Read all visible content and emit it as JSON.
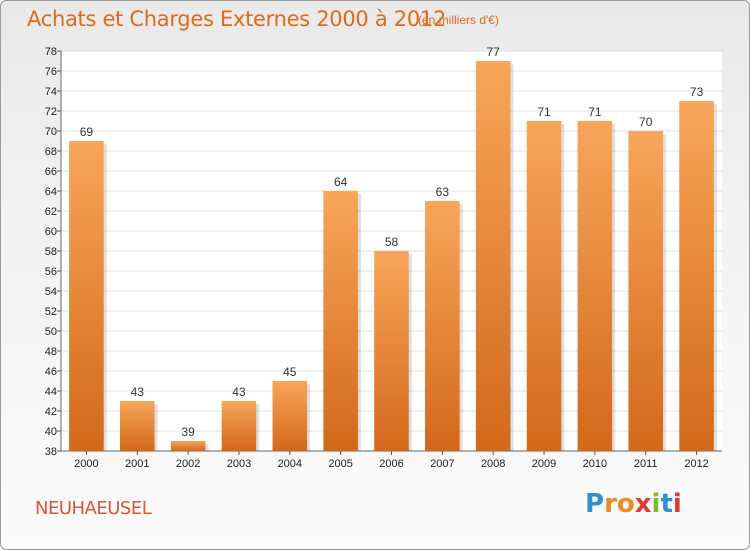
{
  "title": "Achats et Charges Externes 2000 à 2012",
  "subtitle": "(en milliers d'€)",
  "location": "NEUHAEUSEL",
  "brand": {
    "letters": [
      "P",
      "r",
      "o",
      "x",
      "i",
      "t",
      "i"
    ],
    "colors": [
      "#2e8fd3",
      "#f08a1c",
      "#f08a1c",
      "#e03b2a",
      "#7dbb2a",
      "#2e8fd3",
      "#e03b2a"
    ]
  },
  "colors": {
    "bar_top": "#f8a65a",
    "bar_bottom": "#d3681a",
    "title": "#e06a1a"
  },
  "chart_data": {
    "type": "bar",
    "title": "Achats et Charges Externes 2000 à 2012",
    "subtitle": "(en milliers d'€)",
    "categories": [
      "2000",
      "2001",
      "2002",
      "2003",
      "2004",
      "2005",
      "2006",
      "2007",
      "2008",
      "2009",
      "2010",
      "2011",
      "2012"
    ],
    "values": [
      69,
      43,
      39,
      43,
      45,
      64,
      58,
      63,
      77,
      71,
      71,
      70,
      73
    ],
    "ylim": [
      38,
      78
    ],
    "yticks": [
      38,
      40,
      42,
      44,
      46,
      48,
      50,
      52,
      54,
      56,
      58,
      60,
      62,
      64,
      66,
      68,
      70,
      72,
      74,
      76,
      78
    ],
    "grid": true,
    "legend": "none"
  }
}
